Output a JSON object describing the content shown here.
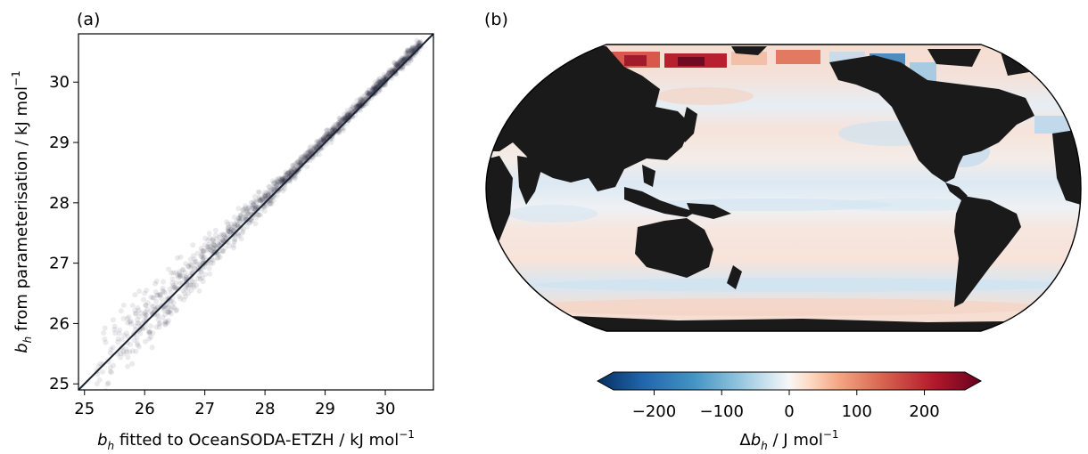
{
  "chart_data": [
    {
      "type": "scatter",
      "panel_label": "(a)",
      "xlabel_symbol": "b",
      "xlabel_sub": "h",
      "xlabel_text": " fitted to OceanSODA-ETZH / kJ mol",
      "xlabel_exp": "−1",
      "ylabel_symbol": "b",
      "ylabel_sub": "h",
      "ylabel_text": " from parameterisation / kJ mol",
      "ylabel_exp": "−1",
      "xlim": [
        24.9,
        30.8
      ],
      "ylim": [
        24.9,
        30.8
      ],
      "xticks": [
        "25",
        "26",
        "27",
        "28",
        "29",
        "30"
      ],
      "yticks": [
        "25",
        "26",
        "27",
        "28",
        "29",
        "30"
      ],
      "one_to_one_line": true,
      "point_color": "#1c2533",
      "series": [
        {
          "points_approx": [
            [
              25.3,
              25.2
            ],
            [
              25.5,
              25.9
            ],
            [
              25.6,
              25.5
            ],
            [
              25.8,
              26.3
            ],
            [
              25.9,
              26.0
            ],
            [
              26.0,
              26.5
            ],
            [
              26.1,
              26.2
            ],
            [
              26.2,
              26.7
            ],
            [
              26.3,
              26.1
            ],
            [
              26.4,
              26.9
            ],
            [
              26.5,
              26.6
            ],
            [
              26.6,
              27.1
            ],
            [
              26.7,
              26.7
            ],
            [
              26.8,
              27.3
            ],
            [
              26.9,
              26.9
            ],
            [
              27.0,
              27.3
            ],
            [
              27.1,
              27.0
            ],
            [
              27.2,
              27.4
            ],
            [
              27.3,
              27.2
            ],
            [
              27.4,
              27.6
            ],
            [
              27.5,
              27.4
            ],
            [
              27.6,
              27.8
            ],
            [
              27.7,
              27.6
            ],
            [
              27.8,
              28.0
            ],
            [
              27.9,
              27.8
            ],
            [
              28.0,
              28.1
            ],
            [
              28.1,
              28.0
            ],
            [
              28.2,
              28.3
            ],
            [
              28.3,
              28.2
            ],
            [
              28.4,
              28.5
            ],
            [
              28.5,
              28.4
            ],
            [
              28.6,
              28.7
            ],
            [
              28.7,
              28.6
            ],
            [
              28.8,
              28.9
            ],
            [
              28.9,
              28.8
            ],
            [
              29.0,
              29.1
            ],
            [
              29.1,
              29.0
            ],
            [
              29.2,
              29.3
            ],
            [
              29.3,
              29.2
            ],
            [
              29.4,
              29.45
            ],
            [
              29.5,
              29.45
            ],
            [
              29.6,
              29.6
            ],
            [
              29.7,
              29.65
            ],
            [
              29.8,
              29.8
            ],
            [
              29.9,
              29.85
            ],
            [
              30.0,
              30.0
            ],
            [
              30.2,
              30.2
            ],
            [
              30.4,
              30.4
            ],
            [
              30.6,
              30.6
            ]
          ]
        }
      ]
    },
    {
      "type": "heatmap",
      "panel_label": "(b)",
      "map_projection": "Robinson",
      "map_center": "Pacific",
      "land_color": "#1a1a1a",
      "colormap": "RdBu_r",
      "colorbar_label_delta": "Δ",
      "colorbar_label_symbol": "b",
      "colorbar_label_sub": "h",
      "colorbar_label_text": " / J mol",
      "colorbar_label_exp": "−1",
      "colorbar_range": [
        -260,
        260
      ],
      "colorbar_extend": "both",
      "colorbar_ticks": [
        "−200",
        "−100",
        "0",
        "100",
        "200"
      ],
      "colorbar_tick_values": [
        -200,
        -100,
        0,
        100,
        200
      ]
    }
  ]
}
